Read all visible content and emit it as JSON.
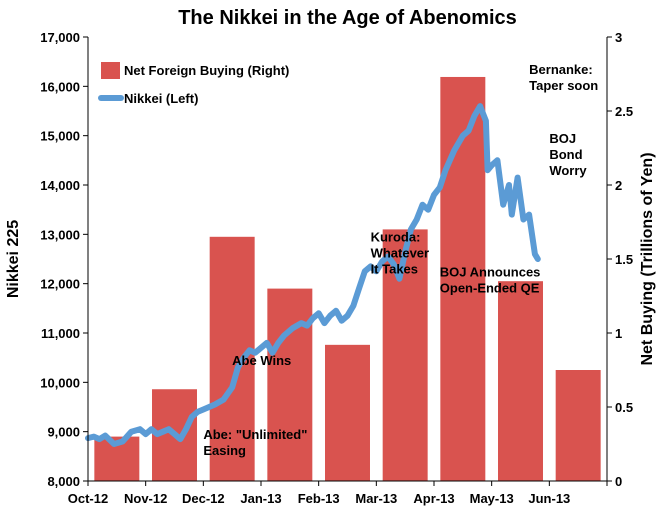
{
  "chart_data": {
    "type": "bar+line",
    "title": "The Nikkei in the Age of Abenomics",
    "ylabel_left": "Nikkei 225",
    "ylabel_right": "Net Buying (Trillions of Yen)",
    "ylim_left": [
      8000,
      17000
    ],
    "ylim_right": [
      0,
      3
    ],
    "yticks_left": [
      "8,000",
      "9,000",
      "10,000",
      "11,000",
      "12,000",
      "13,000",
      "14,000",
      "15,000",
      "16,000",
      "17,000"
    ],
    "yticks_right": [
      "0",
      "0.5",
      "1",
      "1.5",
      "2",
      "2.5",
      "3"
    ],
    "categories": [
      "Oct-12",
      "Nov-12",
      "Dec-12",
      "Jan-13",
      "Feb-13",
      "Mar-13",
      "Apr-13",
      "May-13",
      "Jun-13"
    ],
    "grid": false,
    "legend_position": "top-left",
    "series": [
      {
        "name": "Net Foreign Buying (Right)",
        "type": "bar",
        "axis": "right",
        "color": "#d9534f",
        "values": [
          0.3,
          0.62,
          1.65,
          1.3,
          0.92,
          1.7,
          2.73,
          1.35,
          0.75
        ]
      },
      {
        "name": "Nikkei (Left)",
        "type": "line",
        "axis": "left",
        "color": "#5b9bd5",
        "points": [
          [
            0.0,
            8870
          ],
          [
            0.1,
            8900
          ],
          [
            0.2,
            8850
          ],
          [
            0.3,
            8920
          ],
          [
            0.45,
            8750
          ],
          [
            0.6,
            8800
          ],
          [
            0.75,
            9000
          ],
          [
            0.9,
            9050
          ],
          [
            1.0,
            8950
          ],
          [
            1.1,
            9050
          ],
          [
            1.2,
            8950
          ],
          [
            1.3,
            9000
          ],
          [
            1.4,
            9050
          ],
          [
            1.5,
            8950
          ],
          [
            1.6,
            8850
          ],
          [
            1.7,
            9050
          ],
          [
            1.8,
            9300
          ],
          [
            1.9,
            9400
          ],
          [
            2.0,
            9450
          ],
          [
            2.1,
            9500
          ],
          [
            2.2,
            9550
          ],
          [
            2.35,
            9650
          ],
          [
            2.5,
            9900
          ],
          [
            2.6,
            10300
          ],
          [
            2.7,
            10500
          ],
          [
            2.8,
            10650
          ],
          [
            2.9,
            10600
          ],
          [
            3.0,
            10700
          ],
          [
            3.1,
            10800
          ],
          [
            3.2,
            10600
          ],
          [
            3.3,
            10800
          ],
          [
            3.4,
            10950
          ],
          [
            3.55,
            11100
          ],
          [
            3.7,
            11200
          ],
          [
            3.8,
            11150
          ],
          [
            3.9,
            11300
          ],
          [
            4.0,
            11400
          ],
          [
            4.1,
            11200
          ],
          [
            4.2,
            11350
          ],
          [
            4.3,
            11450
          ],
          [
            4.4,
            11250
          ],
          [
            4.5,
            11350
          ],
          [
            4.6,
            11550
          ],
          [
            4.7,
            11900
          ],
          [
            4.8,
            12250
          ],
          [
            4.9,
            12350
          ],
          [
            5.0,
            12250
          ],
          [
            5.1,
            12450
          ],
          [
            5.2,
            12550
          ],
          [
            5.3,
            12400
          ],
          [
            5.4,
            12100
          ],
          [
            5.5,
            12650
          ],
          [
            5.6,
            13100
          ],
          [
            5.7,
            13300
          ],
          [
            5.8,
            13600
          ],
          [
            5.9,
            13500
          ],
          [
            6.0,
            13800
          ],
          [
            6.1,
            13950
          ],
          [
            6.2,
            14300
          ],
          [
            6.35,
            14700
          ],
          [
            6.5,
            15000
          ],
          [
            6.6,
            15100
          ],
          [
            6.7,
            15400
          ],
          [
            6.8,
            15600
          ],
          [
            6.9,
            15300
          ],
          [
            6.93,
            14300
          ],
          [
            7.0,
            14400
          ],
          [
            7.1,
            14500
          ],
          [
            7.2,
            13600
          ],
          [
            7.3,
            14000
          ],
          [
            7.35,
            13400
          ],
          [
            7.45,
            14150
          ],
          [
            7.55,
            13300
          ],
          [
            7.65,
            13400
          ],
          [
            7.75,
            12600
          ],
          [
            7.8,
            12500
          ]
        ]
      }
    ],
    "annotations": [
      {
        "lines": [
          "Abe: \"Unlimited\"",
          "Easing"
        ],
        "x": 2.0,
        "y": 8850
      },
      {
        "lines": [
          "Abe Wins"
        ],
        "x": 2.5,
        "y": 10350
      },
      {
        "lines": [
          "Kuroda:",
          "Whatever",
          "It Takes"
        ],
        "x": 4.9,
        "y": 12850
      },
      {
        "lines": [
          "BOJ Announces",
          "Open-Ended QE"
        ],
        "x": 6.1,
        "y": 12150
      },
      {
        "lines": [
          "Bernanke:",
          "Taper soon"
        ],
        "x": 7.65,
        "y": 16250
      },
      {
        "lines": [
          "BOJ",
          "Bond",
          "Worry"
        ],
        "x": 8.0,
        "y": 14850
      }
    ]
  }
}
